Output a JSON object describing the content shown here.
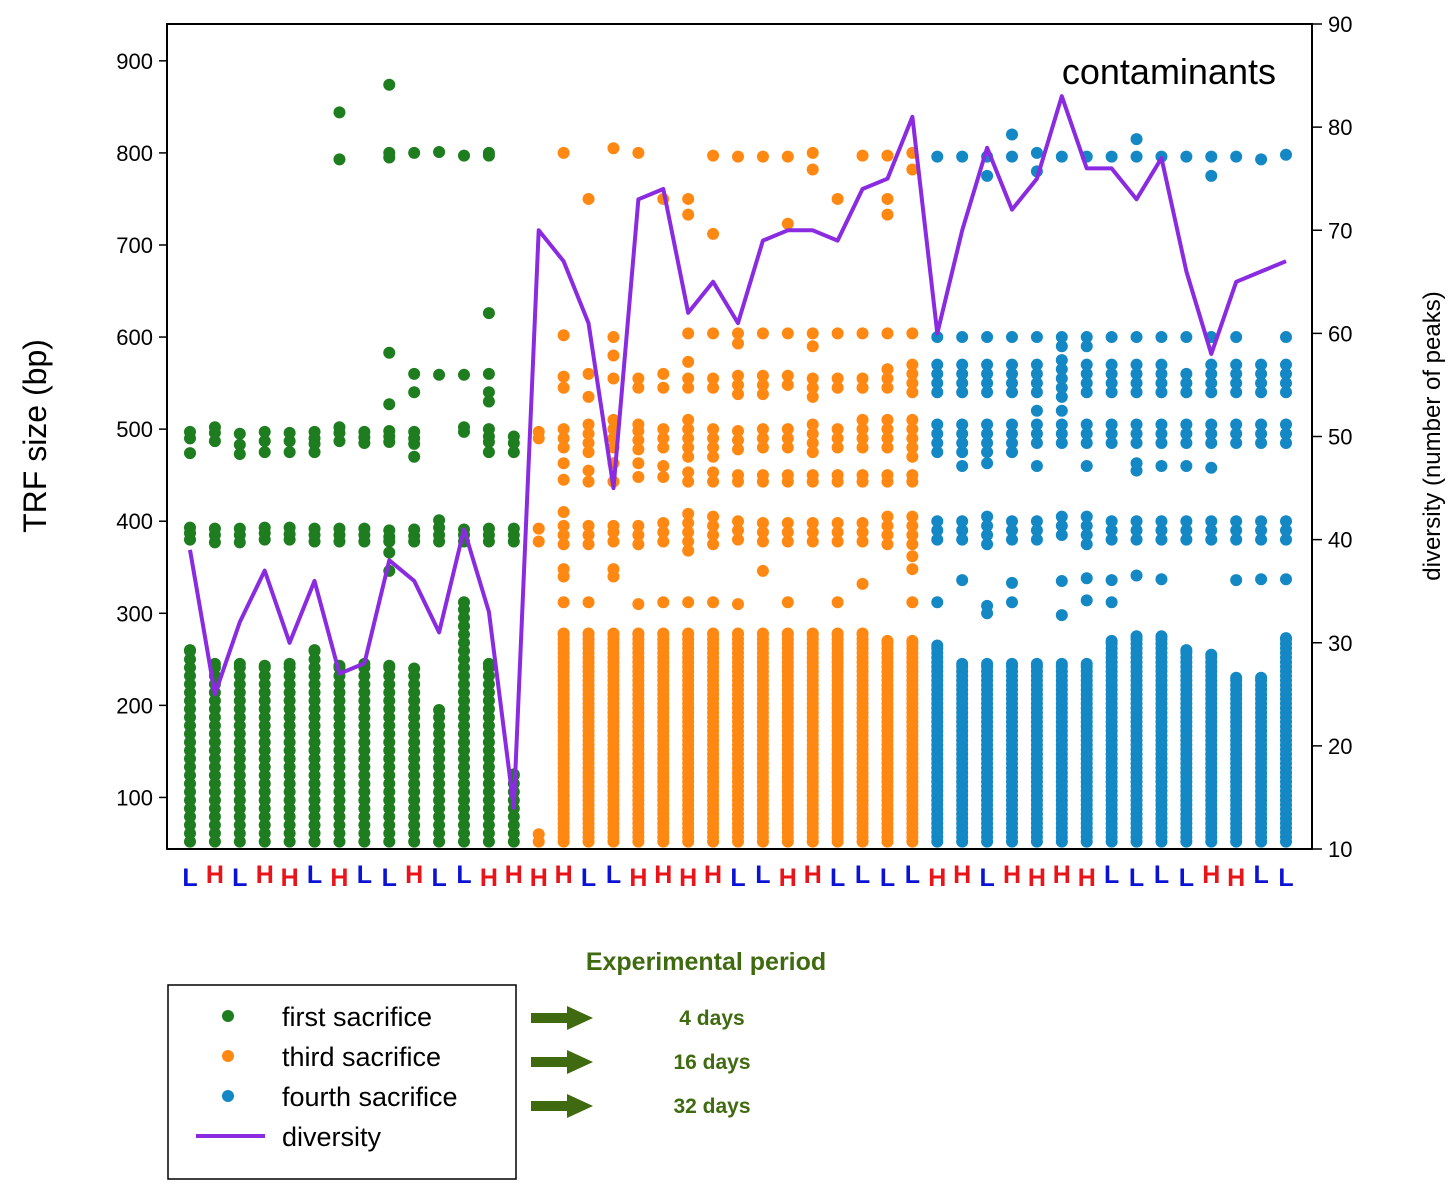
{
  "chart_data": {
    "type": "scatter",
    "annotation": "contaminants",
    "ylabel": "TRF size (bp)",
    "y2label": "diversity (number of peaks)",
    "ylim": [
      44,
      940
    ],
    "y2lim": [
      10,
      90
    ],
    "yticks": [
      100,
      200,
      300,
      400,
      500,
      600,
      700,
      800,
      900
    ],
    "y2ticks": [
      10,
      20,
      30,
      40,
      50,
      60,
      70,
      80,
      90
    ],
    "colors": {
      "first": "#1e7d1e",
      "third": "#ff8812",
      "fourth": "#1388c5",
      "diversity": "#8a2be2",
      "L": "#0a12d6",
      "H": "#e8141a",
      "green_text": "#3f6a0f"
    },
    "sample_labels": [
      "L",
      "H",
      "L",
      "H",
      "H",
      "L",
      "H",
      "L",
      "L",
      "H",
      "L",
      "L",
      "H",
      "H",
      "H",
      "H",
      "L",
      "L",
      "H",
      "H",
      "H",
      "H",
      "L",
      "L",
      "H",
      "H",
      "L",
      "L",
      "L",
      "L",
      "H",
      "H",
      "L",
      "H",
      "H",
      "H",
      "H",
      "L",
      "L",
      "L",
      "L",
      "H",
      "H",
      "L",
      "L"
    ],
    "groups": [
      {
        "name": "first sacrifice",
        "color": "#1e7d1e",
        "start": 0,
        "end": 13
      },
      {
        "name": "third sacrifice",
        "color": "#ff8812",
        "start": 14,
        "end": 29
      },
      {
        "name": "fourth sacrifice",
        "color": "#1388c5",
        "start": 30,
        "end": 44
      }
    ],
    "high_points": [
      {
        "i": 0,
        "v": [
          474,
          490,
          497,
          380,
          387,
          393
        ]
      },
      {
        "i": 1,
        "v": [
          487,
          496,
          502,
          377,
          385,
          392
        ]
      },
      {
        "i": 2,
        "v": [
          473,
          483,
          495,
          377,
          385,
          392
        ]
      },
      {
        "i": 3,
        "v": [
          475,
          487,
          497,
          380,
          387,
          393
        ]
      },
      {
        "i": 4,
        "v": [
          475,
          487,
          496,
          380,
          386,
          393
        ]
      },
      {
        "i": 5,
        "v": [
          475,
          484,
          490,
          497,
          378,
          385,
          392
        ]
      },
      {
        "i": 6,
        "v": [
          844,
          793,
          487,
          496,
          502,
          378,
          385,
          392
        ]
      },
      {
        "i": 7,
        "v": [
          485,
          491,
          497,
          378,
          385,
          392
        ]
      },
      {
        "i": 8,
        "v": [
          874,
          800,
          795,
          583,
          527,
          486,
          492,
          498,
          378,
          383,
          390,
          366,
          346
        ]
      },
      {
        "i": 9,
        "v": [
          800,
          560,
          540,
          470,
          484,
          490,
          497,
          378,
          384,
          391
        ]
      },
      {
        "i": 10,
        "v": [
          801,
          559,
          378,
          385,
          393,
          401
        ]
      },
      {
        "i": 11,
        "v": [
          797,
          559,
          497,
          502,
          378,
          385,
          391
        ]
      },
      {
        "i": 12,
        "v": [
          800,
          797,
          626,
          560,
          540,
          530,
          475,
          486,
          492,
          500,
          378,
          385,
          392
        ]
      },
      {
        "i": 13,
        "v": [
          475,
          485,
          492,
          378,
          385,
          392
        ]
      },
      {
        "i": 14,
        "v": [
          490,
          497,
          378,
          392
        ]
      },
      {
        "i": 15,
        "v": [
          800,
          602,
          557,
          545,
          500,
          490,
          480,
          463,
          445,
          410,
          395,
          385,
          375,
          348,
          340,
          312
        ]
      },
      {
        "i": 16,
        "v": [
          750,
          560,
          535,
          505,
          495,
          485,
          475,
          455,
          443,
          395,
          385,
          375,
          312
        ]
      },
      {
        "i": 17,
        "v": [
          805,
          600,
          580,
          555,
          510,
          500,
          490,
          480,
          463,
          443,
          395,
          388,
          378,
          348,
          340
        ]
      },
      {
        "i": 18,
        "v": [
          800,
          555,
          545,
          505,
          498,
          488,
          478,
          463,
          448,
          395,
          385,
          375,
          310
        ]
      },
      {
        "i": 19,
        "v": [
          750,
          560,
          545,
          500,
          490,
          480,
          460,
          448,
          398,
          388,
          378,
          312
        ]
      },
      {
        "i": 20,
        "v": [
          750,
          733,
          604,
          573,
          555,
          545,
          510,
          500,
          490,
          480,
          470,
          453,
          443,
          408,
          398,
          388,
          378,
          368,
          312
        ]
      },
      {
        "i": 21,
        "v": [
          797,
          712,
          604,
          555,
          545,
          500,
          490,
          480,
          470,
          453,
          443,
          405,
          395,
          385,
          375,
          312
        ]
      },
      {
        "i": 22,
        "v": [
          796,
          604,
          593,
          558,
          548,
          538,
          498,
          488,
          478,
          450,
          443,
          400,
          390,
          380,
          310
        ]
      },
      {
        "i": 23,
        "v": [
          796,
          604,
          558,
          548,
          538,
          500,
          490,
          480,
          450,
          443,
          398,
          388,
          378,
          346
        ]
      },
      {
        "i": 24,
        "v": [
          796,
          723,
          604,
          558,
          548,
          500,
          490,
          480,
          450,
          443,
          398,
          388,
          378,
          312
        ]
      },
      {
        "i": 25,
        "v": [
          800,
          782,
          604,
          590,
          555,
          545,
          535,
          505,
          495,
          485,
          475,
          450,
          443,
          398,
          388,
          378
        ]
      },
      {
        "i": 26,
        "v": [
          750,
          604,
          555,
          545,
          500,
          490,
          480,
          450,
          443,
          398,
          388,
          378,
          312
        ]
      },
      {
        "i": 27,
        "v": [
          797,
          604,
          555,
          545,
          510,
          500,
          490,
          480,
          450,
          443,
          398,
          388,
          378,
          332
        ]
      },
      {
        "i": 28,
        "v": [
          797,
          750,
          733,
          604,
          565,
          555,
          545,
          510,
          500,
          490,
          480,
          450,
          443,
          405,
          395,
          385,
          375
        ]
      },
      {
        "i": 29,
        "v": [
          800,
          782,
          604,
          570,
          560,
          550,
          540,
          510,
          500,
          490,
          480,
          470,
          450,
          443,
          405,
          395,
          385,
          375,
          362,
          348,
          312
        ]
      },
      {
        "i": 30,
        "v": [
          796,
          600,
          570,
          560,
          550,
          540,
          505,
          495,
          485,
          475,
          400,
          390,
          380,
          312
        ]
      },
      {
        "i": 31,
        "v": [
          796,
          600,
          570,
          560,
          550,
          540,
          505,
          495,
          485,
          475,
          460,
          400,
          390,
          380,
          336
        ]
      },
      {
        "i": 32,
        "v": [
          796,
          775,
          600,
          570,
          560,
          550,
          540,
          505,
          495,
          485,
          475,
          463,
          405,
          395,
          385,
          375,
          308,
          300
        ]
      },
      {
        "i": 33,
        "v": [
          820,
          796,
          600,
          570,
          560,
          550,
          540,
          505,
          495,
          485,
          475,
          400,
          390,
          380,
          333,
          312
        ]
      },
      {
        "i": 34,
        "v": [
          800,
          780,
          600,
          570,
          560,
          550,
          540,
          520,
          505,
          495,
          485,
          460,
          400,
          390,
          380
        ]
      },
      {
        "i": 35,
        "v": [
          796,
          600,
          590,
          575,
          565,
          555,
          545,
          535,
          520,
          505,
          495,
          485,
          405,
          395,
          385,
          335,
          298
        ]
      },
      {
        "i": 36,
        "v": [
          796,
          600,
          590,
          570,
          560,
          550,
          540,
          505,
          495,
          485,
          460,
          405,
          395,
          385,
          375,
          338,
          314
        ]
      },
      {
        "i": 37,
        "v": [
          796,
          600,
          570,
          560,
          550,
          540,
          505,
          495,
          485,
          400,
          390,
          380,
          336,
          312
        ]
      },
      {
        "i": 38,
        "v": [
          815,
          796,
          600,
          570,
          560,
          550,
          540,
          505,
          495,
          485,
          463,
          455,
          400,
          390,
          380,
          341
        ]
      },
      {
        "i": 39,
        "v": [
          796,
          600,
          570,
          560,
          550,
          540,
          505,
          495,
          485,
          460,
          400,
          390,
          380,
          337
        ]
      },
      {
        "i": 40,
        "v": [
          796,
          600,
          560,
          550,
          540,
          505,
          495,
          485,
          460,
          400,
          390,
          380
        ]
      },
      {
        "i": 41,
        "v": [
          796,
          775,
          600,
          570,
          560,
          550,
          540,
          505,
          495,
          485,
          458,
          400,
          390,
          380
        ]
      },
      {
        "i": 42,
        "v": [
          796,
          600,
          570,
          560,
          550,
          540,
          505,
          495,
          485,
          400,
          390,
          380,
          336
        ]
      },
      {
        "i": 43,
        "v": [
          793,
          570,
          560,
          550,
          540,
          505,
          495,
          485,
          400,
          390,
          380,
          337
        ]
      },
      {
        "i": 44,
        "v": [
          798,
          600,
          570,
          560,
          550,
          540,
          505,
          495,
          485,
          400,
          390,
          380,
          337
        ]
      }
    ],
    "low_points": [
      {
        "i": 0,
        "max": 260
      },
      {
        "i": 1,
        "max": 245
      },
      {
        "i": 2,
        "max": 245
      },
      {
        "i": 3,
        "max": 243
      },
      {
        "i": 4,
        "max": 245
      },
      {
        "i": 5,
        "max": 260
      },
      {
        "i": 6,
        "max": 243
      },
      {
        "i": 7,
        "max": 245
      },
      {
        "i": 8,
        "max": 243
      },
      {
        "i": 9,
        "max": 240
      },
      {
        "i": 10,
        "max": 195
      },
      {
        "i": 11,
        "max": 312
      },
      {
        "i": 12,
        "max": 245
      },
      {
        "i": 13,
        "max": 125
      },
      {
        "i": 14,
        "max": 60
      },
      {
        "i": 15,
        "max": 278
      },
      {
        "i": 16,
        "max": 278
      },
      {
        "i": 17,
        "max": 278
      },
      {
        "i": 18,
        "max": 278
      },
      {
        "i": 19,
        "max": 278
      },
      {
        "i": 20,
        "max": 278
      },
      {
        "i": 21,
        "max": 278
      },
      {
        "i": 22,
        "max": 278
      },
      {
        "i": 23,
        "max": 278
      },
      {
        "i": 24,
        "max": 278
      },
      {
        "i": 25,
        "max": 278
      },
      {
        "i": 26,
        "max": 278
      },
      {
        "i": 27,
        "max": 278
      },
      {
        "i": 28,
        "max": 270
      },
      {
        "i": 29,
        "max": 270
      },
      {
        "i": 30,
        "max": 265
      },
      {
        "i": 31,
        "max": 245
      },
      {
        "i": 32,
        "max": 245
      },
      {
        "i": 33,
        "max": 245
      },
      {
        "i": 34,
        "max": 245
      },
      {
        "i": 35,
        "max": 245
      },
      {
        "i": 36,
        "max": 245
      },
      {
        "i": 37,
        "max": 270
      },
      {
        "i": 38,
        "max": 275
      },
      {
        "i": 39,
        "max": 275
      },
      {
        "i": 40,
        "max": 260
      },
      {
        "i": 41,
        "max": 255
      },
      {
        "i": 42,
        "max": 230
      },
      {
        "i": 43,
        "max": 230
      },
      {
        "i": 44,
        "max": 273
      }
    ],
    "diversity": [
      39,
      25,
      32,
      37,
      30,
      36,
      27,
      28,
      38,
      36,
      31,
      41,
      33,
      14,
      70,
      67,
      61,
      45,
      73,
      74,
      62,
      65,
      61,
      69,
      70,
      70,
      69,
      74,
      75,
      81,
      60,
      70,
      78,
      72,
      75,
      83,
      76,
      76,
      73,
      77,
      66,
      58,
      65,
      66,
      67
    ]
  },
  "legend": {
    "items": [
      {
        "label": "first sacrifice",
        "color": "#1e7d1e",
        "kind": "dot"
      },
      {
        "label": "third sacrifice",
        "color": "#ff8812",
        "kind": "dot"
      },
      {
        "label": "fourth sacrifice",
        "color": "#1388c5",
        "kind": "dot"
      },
      {
        "label": "diversity",
        "color": "#8a2be2",
        "kind": "line"
      }
    ]
  },
  "experimental": {
    "title": "Experimental period",
    "items": [
      "4 days",
      "16 days",
      "32 days"
    ]
  }
}
